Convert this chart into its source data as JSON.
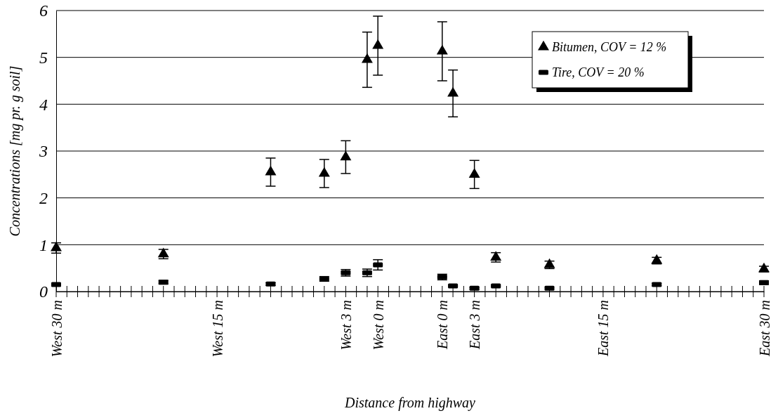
{
  "chart_data": {
    "type": "scatter",
    "xlabel": "Distance from highway",
    "ylabel": "Concentrations [mg pr. g soil]",
    "categories": [
      "West 30 m",
      null,
      null,
      null,
      null,
      null,
      null,
      null,
      null,
      null,
      null,
      null,
      null,
      null,
      null,
      "West 15 m",
      null,
      null,
      null,
      null,
      null,
      null,
      null,
      null,
      null,
      null,
      null,
      "West 3 m",
      null,
      null,
      "West 0 m",
      null,
      null,
      null,
      null,
      null,
      "East 0 m",
      null,
      null,
      "East 3 m",
      null,
      null,
      null,
      null,
      null,
      null,
      null,
      null,
      null,
      null,
      null,
      "East 15 m",
      null,
      null,
      null,
      null,
      null,
      null,
      null,
      null,
      null,
      null,
      null,
      null,
      null,
      null,
      "East 30 m"
    ],
    "ylim": [
      0,
      6
    ],
    "yticks": [
      0,
      1,
      2,
      3,
      4,
      5,
      6
    ],
    "grid": "y",
    "legend": "top right",
    "series": [
      {
        "name": "Bitumen, COV = 12 %",
        "color": "#000000",
        "marker": "triangle",
        "values": [
          0.93,
          null,
          null,
          null,
          null,
          null,
          null,
          null,
          null,
          null,
          0.8,
          null,
          null,
          null,
          null,
          null,
          null,
          null,
          null,
          null,
          2.55,
          null,
          null,
          null,
          null,
          2.52,
          null,
          2.87,
          null,
          4.95,
          5.25,
          null,
          null,
          null,
          null,
          null,
          5.13,
          4.23,
          null,
          2.5,
          null,
          0.73,
          null,
          null,
          null,
          null,
          0.57,
          null,
          null,
          null,
          null,
          null,
          null,
          null,
          null,
          null,
          0.66,
          null,
          null,
          null,
          null,
          null,
          null,
          null,
          null,
          null,
          0.48
        ],
        "errors": [
          0.11,
          null,
          null,
          null,
          null,
          null,
          null,
          null,
          null,
          null,
          0.1,
          null,
          null,
          null,
          null,
          null,
          null,
          null,
          null,
          null,
          0.3,
          null,
          null,
          null,
          null,
          0.3,
          null,
          0.35,
          null,
          0.59,
          0.63,
          null,
          null,
          null,
          null,
          null,
          0.63,
          0.5,
          null,
          0.3,
          null,
          0.1,
          null,
          null,
          null,
          null,
          0.08,
          null,
          null,
          null,
          null,
          null,
          null,
          null,
          null,
          null,
          0.07,
          null,
          null,
          null,
          null,
          null,
          null,
          null,
          null,
          null,
          0.06
        ]
      },
      {
        "name": "Tire, COV = 20 %",
        "color": "#000000",
        "marker": "square",
        "values": [
          0.15,
          null,
          null,
          null,
          null,
          null,
          null,
          null,
          null,
          null,
          0.2,
          null,
          null,
          null,
          null,
          null,
          null,
          null,
          null,
          null,
          0.16,
          null,
          null,
          null,
          null,
          0.27,
          null,
          0.4,
          null,
          0.4,
          0.57,
          null,
          null,
          null,
          null,
          null,
          0.31,
          0.12,
          null,
          0.07,
          null,
          0.12,
          null,
          null,
          null,
          null,
          0.07,
          null,
          null,
          null,
          null,
          null,
          null,
          null,
          null,
          null,
          0.15,
          null,
          null,
          null,
          null,
          null,
          null,
          null,
          null,
          null,
          0.19
        ],
        "errors": [
          0.03,
          null,
          null,
          null,
          null,
          null,
          null,
          null,
          null,
          null,
          0.04,
          null,
          null,
          null,
          null,
          null,
          null,
          null,
          null,
          null,
          0.03,
          null,
          null,
          null,
          null,
          0.05,
          null,
          0.07,
          null,
          0.08,
          0.11,
          null,
          null,
          null,
          null,
          null,
          0.06,
          0.02,
          null,
          0.02,
          null,
          0.02,
          null,
          null,
          null,
          null,
          null,
          null,
          null,
          null,
          null,
          null,
          null,
          null,
          null,
          null,
          0.03,
          null,
          null,
          null,
          null,
          null,
          null,
          null,
          null,
          null,
          0.04
        ]
      }
    ]
  }
}
